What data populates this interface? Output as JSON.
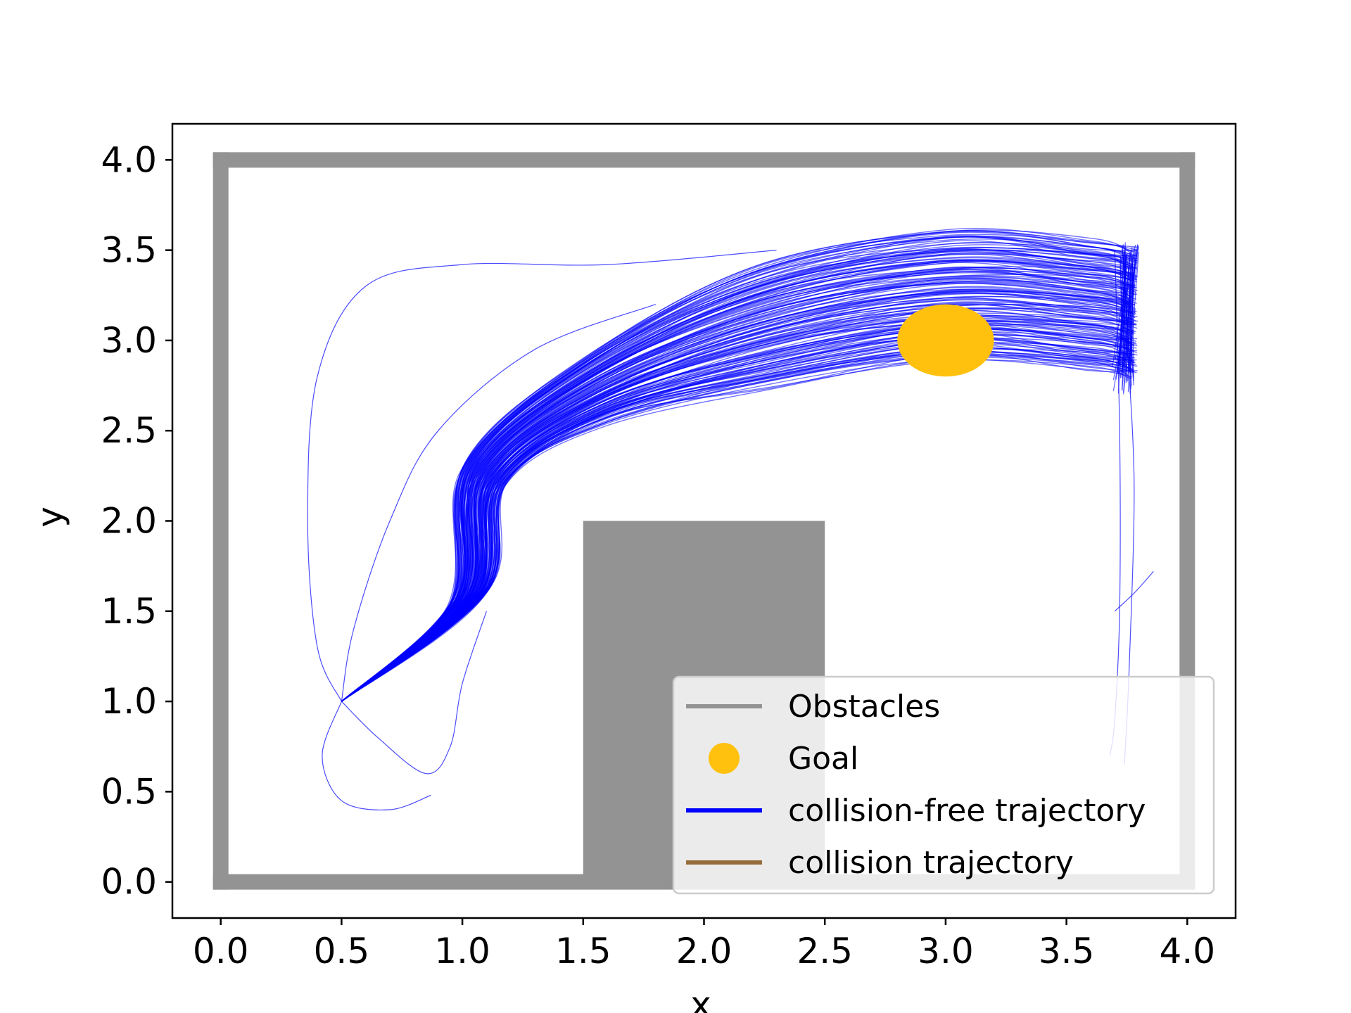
{
  "chart_data": {
    "type": "line",
    "title": "",
    "xlabel": "x",
    "ylabel": "y",
    "xlim": [
      -0.2,
      4.2
    ],
    "ylim": [
      -0.2,
      4.2
    ],
    "xticks": [
      "0.0",
      "0.5",
      "1.0",
      "1.5",
      "2.0",
      "2.5",
      "3.0",
      "3.5",
      "4.0"
    ],
    "yticks": [
      "0.0",
      "0.5",
      "1.0",
      "1.5",
      "2.0",
      "2.5",
      "3.0",
      "3.5",
      "4.0"
    ],
    "grid": false,
    "legend_position": "bottom-right",
    "legend": [
      {
        "label": "Obstacles",
        "kind": "line",
        "color": "#939393"
      },
      {
        "label": "Goal",
        "kind": "marker",
        "color": "#ffc10e"
      },
      {
        "label": "collision-free trajectory",
        "kind": "line",
        "color": "#0000ff"
      },
      {
        "label": "collision trajectory",
        "kind": "line",
        "color": "#956d3b"
      }
    ],
    "obstacles": {
      "color": "#939393",
      "walls": [
        {
          "x": [
            0,
            4
          ],
          "y": [
            4,
            4
          ]
        },
        {
          "x": [
            0,
            0
          ],
          "y": [
            0,
            4
          ]
        },
        {
          "x": [
            4,
            4
          ],
          "y": [
            0,
            4
          ]
        },
        {
          "x": [
            0,
            4
          ],
          "y": [
            0,
            0
          ]
        }
      ],
      "block": {
        "x": [
          1.5,
          2.5
        ],
        "y": [
          0,
          2
        ]
      }
    },
    "goal": {
      "x": 3.0,
      "y": 3.0,
      "radius": 0.2,
      "color": "#ffc10e"
    },
    "start": {
      "x": 0.5,
      "y": 1.0
    },
    "trajectory_bundle": {
      "color": "#0000ff",
      "waypoints_upper": [
        [
          0.5,
          1.0
        ],
        [
          0.95,
          1.55
        ],
        [
          1.0,
          2.3
        ],
        [
          1.5,
          2.9
        ],
        [
          2.2,
          3.4
        ],
        [
          3.0,
          3.6
        ],
        [
          3.6,
          3.55
        ],
        [
          3.78,
          3.5
        ]
      ],
      "waypoints_lower": [
        [
          0.5,
          1.0
        ],
        [
          1.1,
          1.6
        ],
        [
          1.18,
          2.2
        ],
        [
          1.6,
          2.55
        ],
        [
          2.3,
          2.75
        ],
        [
          3.0,
          2.9
        ],
        [
          3.6,
          2.85
        ],
        [
          3.78,
          2.8
        ]
      ],
      "stray_paths": [
        [
          [
            0.5,
            1.0
          ],
          [
            0.4,
            1.3
          ],
          [
            0.36,
            2.0
          ],
          [
            0.4,
            2.8
          ],
          [
            0.6,
            3.3
          ],
          [
            1.0,
            3.42
          ],
          [
            1.6,
            3.42
          ],
          [
            2.3,
            3.5
          ]
        ],
        [
          [
            0.5,
            1.0
          ],
          [
            0.42,
            0.7
          ],
          [
            0.5,
            0.45
          ],
          [
            0.7,
            0.4
          ],
          [
            0.87,
            0.48
          ]
        ],
        [
          [
            0.5,
            1.0
          ],
          [
            0.65,
            0.8
          ],
          [
            0.85,
            0.6
          ],
          [
            0.95,
            0.75
          ],
          [
            1.0,
            1.1
          ],
          [
            1.1,
            1.5
          ]
        ],
        [
          [
            0.5,
            1.0
          ],
          [
            0.55,
            1.4
          ],
          [
            0.7,
            2.0
          ],
          [
            0.9,
            2.5
          ],
          [
            1.3,
            2.95
          ],
          [
            1.8,
            3.2
          ]
        ],
        [
          [
            3.7,
            3.5
          ],
          [
            3.72,
            2.5
          ],
          [
            3.72,
            1.5
          ],
          [
            3.7,
            0.9
          ],
          [
            3.68,
            0.7
          ]
        ],
        [
          [
            3.75,
            3.0
          ],
          [
            3.78,
            2.2
          ],
          [
            3.76,
            1.2
          ],
          [
            3.74,
            0.65
          ]
        ],
        [
          [
            3.7,
            1.5
          ],
          [
            3.78,
            1.6
          ],
          [
            3.86,
            1.72
          ]
        ]
      ]
    }
  }
}
